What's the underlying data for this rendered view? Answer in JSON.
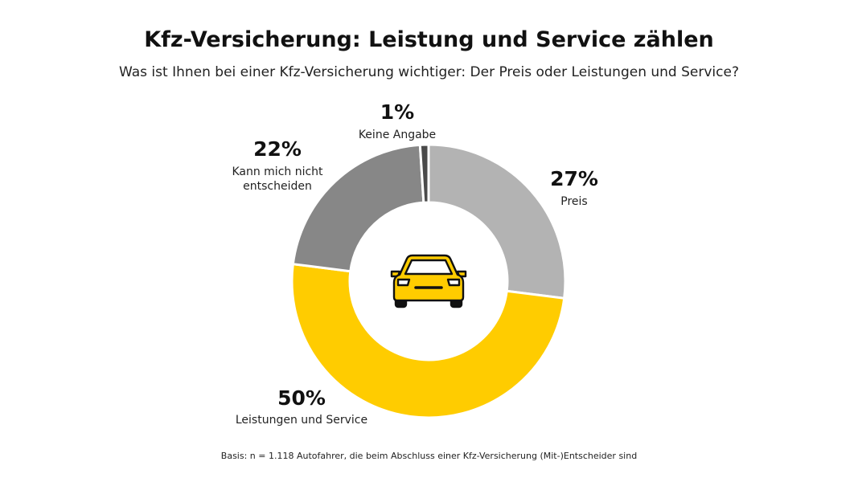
{
  "title": "Kfz-Versicherung: Leistung und Service zählen",
  "subtitle": "Was ist Ihnen bei einer Kfz-Versicherung wichtiger: Der Preis oder Leistungen und Service?",
  "footnote": "Basis: n = 1.118 Autofahrer, die beim Abschluss einer Kfz-Versicherung (Mit-)Entscheider sind",
  "center_icon": "car-icon",
  "colors": {
    "preis": "#b3b3b3",
    "leistungen": "#ffcc00",
    "unentschieden": "#878787",
    "keine_angabe": "#4a4a4a",
    "car_body": "#ffcc00",
    "car_outline": "#111111"
  },
  "chart_data": {
    "type": "pie",
    "variant": "donut",
    "slices": [
      {
        "label": "Preis",
        "value": 27,
        "value_label": "27%",
        "color": "#b3b3b3"
      },
      {
        "label": "Leistungen und Service",
        "value": 50,
        "value_label": "50%",
        "color": "#ffcc00"
      },
      {
        "label": "Kann mich nicht entscheiden",
        "label_lines": [
          "Kann mich nicht",
          "entscheiden"
        ],
        "value": 22,
        "value_label": "22%",
        "color": "#878787"
      },
      {
        "label": "Keine Angabe",
        "value": 1,
        "value_label": "1%",
        "color": "#4a4a4a"
      }
    ],
    "unit": "%"
  }
}
